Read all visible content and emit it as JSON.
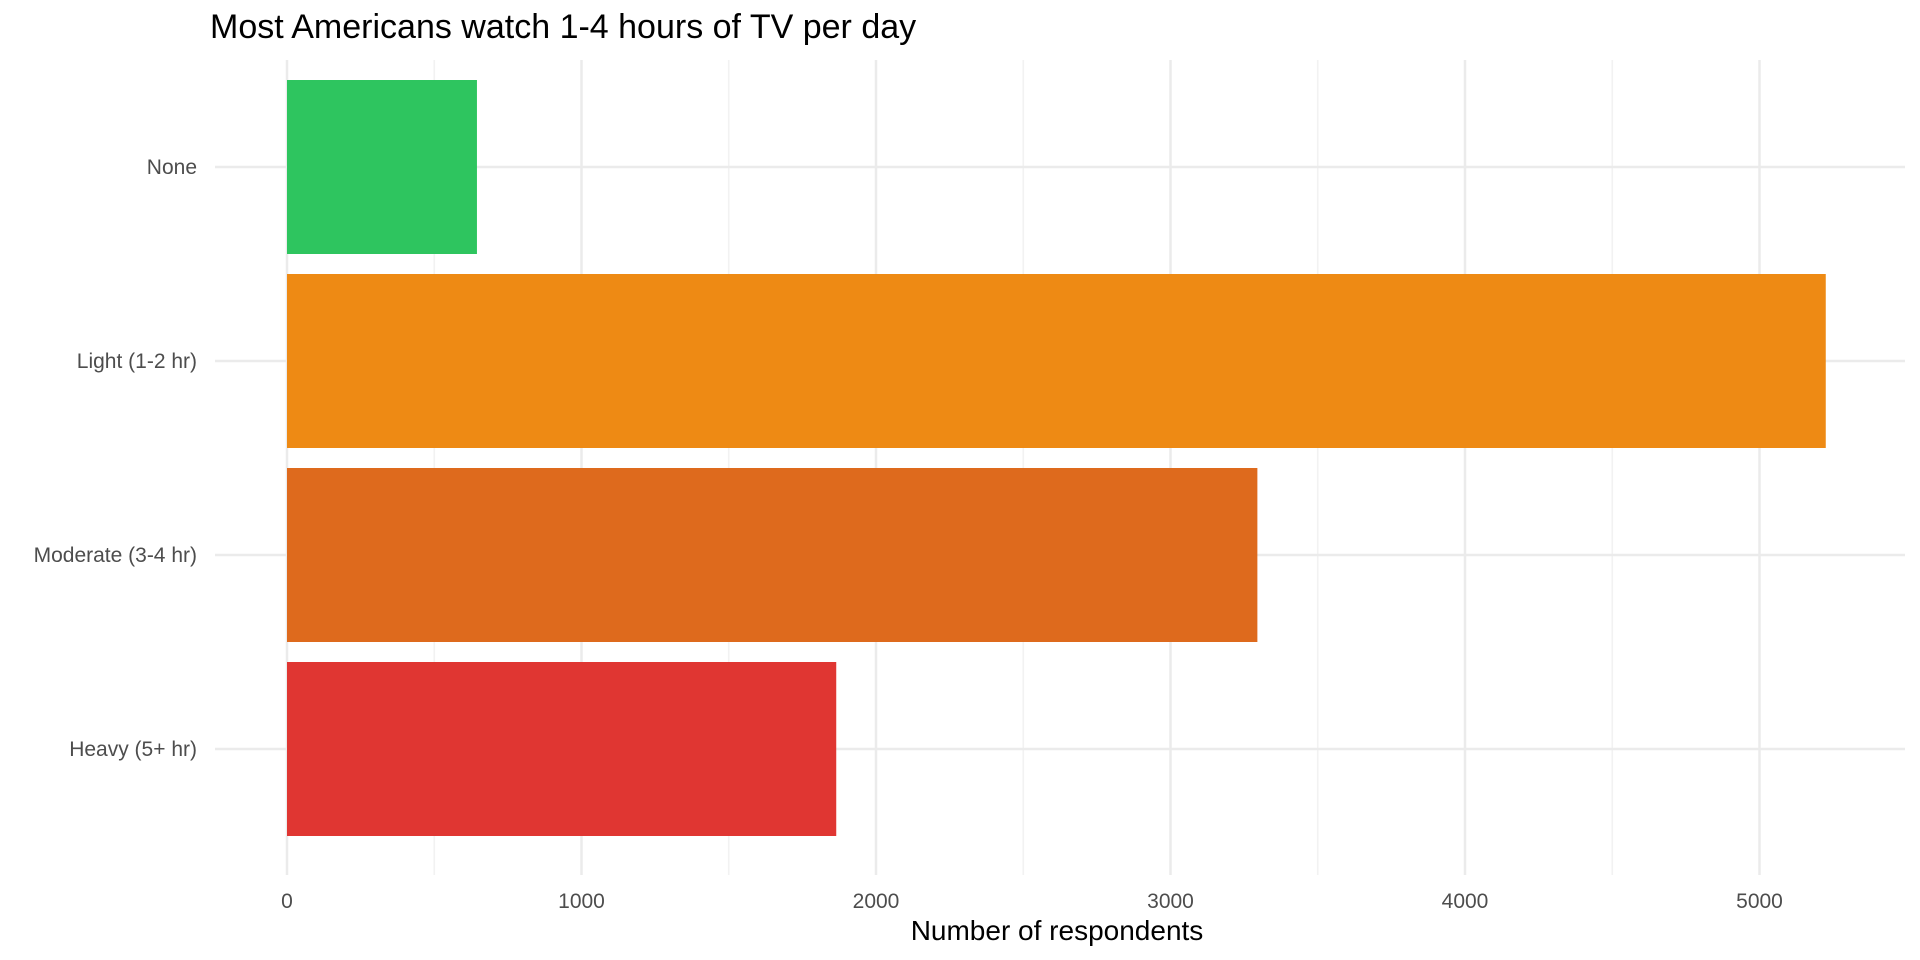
{
  "chart_data": {
    "type": "bar",
    "orientation": "horizontal",
    "title": "Most Americans watch 1-4 hours of TV per day",
    "xlabel": "Number of respondents",
    "ylabel": "",
    "categories": [
      "None",
      "Light (1-2 hr)",
      "Moderate (3-4 hr)",
      "Heavy (5+ hr)"
    ],
    "values": [
      645,
      5225,
      3295,
      1865
    ],
    "colors": [
      "#2ec55f",
      "#ee8a14",
      "#de6a1d",
      "#e03632"
    ],
    "xlim": [
      0,
      5450
    ],
    "x_ticks": [
      0,
      1000,
      2000,
      3000,
      4000,
      5000
    ],
    "x_tick_labels": [
      "0",
      "1000",
      "2000",
      "3000",
      "4000",
      "5000"
    ],
    "x_minor_ticks": [
      500,
      1500,
      2500,
      3500,
      4500
    ],
    "grid": true,
    "legend": "none"
  }
}
